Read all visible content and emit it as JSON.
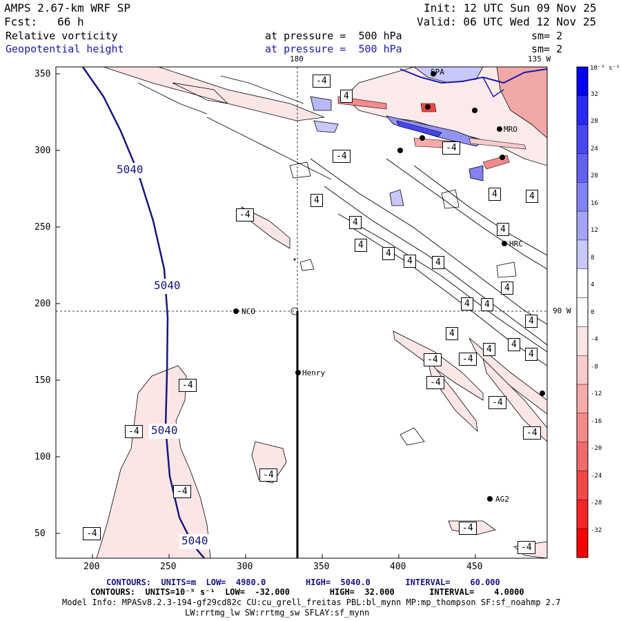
{
  "header": {
    "model": "AMPS 2.67-km WRF SP",
    "init": "Init: 12 UTC Sun 09 Nov 25",
    "fcst": "Fcst:   66 h",
    "valid": "Valid: 06 UTC Wed 12 Nov 25",
    "field1": {
      "name": "Relative vorticity",
      "level": "at pressure =  500 hPa",
      "sm": "sm= 2"
    },
    "field2": {
      "name": "Geopotential height",
      "level": "at pressure =  500 hPa",
      "sm": "sm= 2"
    }
  },
  "map": {
    "meridian_labels": [
      "180",
      "135 W"
    ],
    "parallel_label": "90 W",
    "x_ticks": [
      "200",
      "250",
      "300",
      "350",
      "400",
      "450"
    ],
    "y_ticks": [
      "350",
      "300",
      "250",
      "200",
      "150",
      "100",
      "50"
    ],
    "stations": [
      "NCO",
      "Henry",
      "MRO",
      "HRC",
      "AG2",
      "SPA"
    ],
    "height_labels": [
      "5040",
      "5040",
      "5040",
      "5040"
    ],
    "vort_pos_label": "4",
    "vort_neg_label": "-4"
  },
  "colorbar": {
    "unit": "10⁻⁵ s⁻¹",
    "tick_labels": [
      "32",
      "28",
      "24",
      "20",
      "16",
      "12",
      "8",
      "4",
      "0",
      "-4",
      "-8",
      "-12",
      "-16",
      "-20",
      "-24",
      "-28",
      "-32"
    ],
    "colors": [
      "#0000f2",
      "#2a2af6",
      "#4646f4",
      "#6262f2",
      "#8282f4",
      "#a4a4f6",
      "#c8c8fa",
      "#ffffff",
      "#ffffff",
      "#fae4e4",
      "#f8caca",
      "#f6aaaa",
      "#f48a8a",
      "#f26a6a",
      "#f44848",
      "#f62626",
      "#f80000"
    ]
  },
  "footer": {
    "line1": "CONTOURS:  UNITS=m  LOW=  4980.0        HIGH=  5040.0       INTERVAL=    60.000",
    "line2": "CONTOURS:  UNITS=10⁻⁵ s⁻¹  LOW=  -32.000        HIGH=  32.000       INTERVAL=    4.0000",
    "line3": "Model Info: MPASv8.2.3-194-gf29cd82c CU:cu_grell_freitas PBL:bl_mynn MP:mp_thompson SF:sf_noahmp 2.7",
    "line4": "LW:rrtmg_lw SW:rrtmg_sw SFLAY:sf_mynn"
  }
}
